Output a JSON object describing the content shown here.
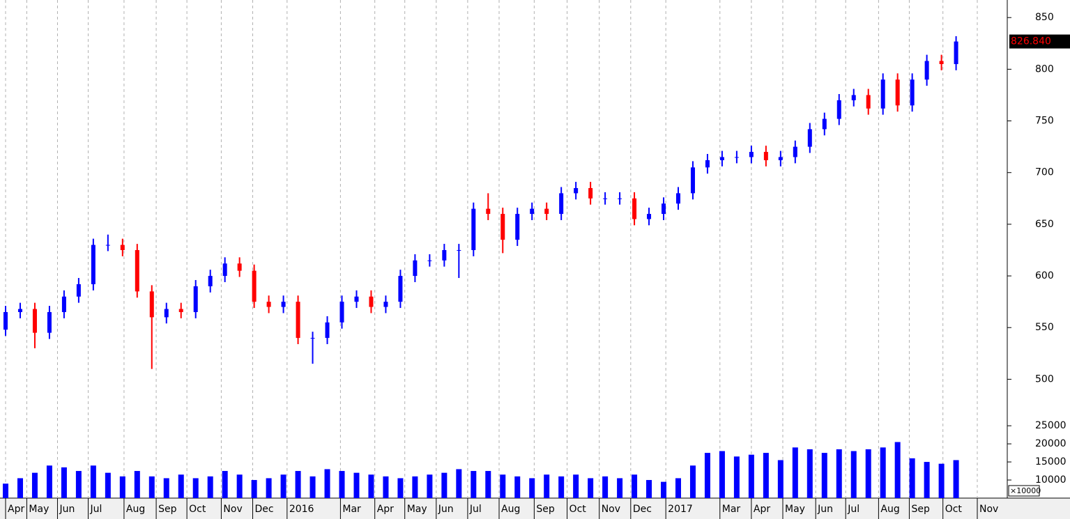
{
  "chart_data": [
    {
      "type": "candlestick",
      "x": [
        0,
        2,
        4,
        6,
        8,
        10,
        12,
        14,
        16,
        18,
        20,
        22,
        24,
        26,
        28,
        30,
        32,
        34,
        36,
        38,
        40,
        42,
        44,
        46,
        48,
        50,
        52,
        54,
        56,
        58,
        60,
        62,
        64,
        66,
        68,
        70,
        72,
        74,
        76,
        78,
        80,
        82,
        84,
        86,
        88,
        90,
        92,
        94,
        96,
        98,
        100,
        102,
        104,
        106,
        108,
        110,
        112,
        114,
        116,
        118,
        120,
        122,
        124,
        126,
        128,
        130
      ],
      "open": [
        548,
        565,
        568,
        545,
        565,
        580,
        592,
        630,
        630,
        625,
        585,
        560,
        568,
        565,
        590,
        600,
        612,
        605,
        575,
        570,
        575,
        540,
        540,
        555,
        575,
        580,
        570,
        575,
        600,
        615,
        615,
        625,
        625,
        665,
        660,
        635,
        660,
        665,
        660,
        680,
        685,
        675,
        675,
        675,
        655,
        660,
        670,
        680,
        705,
        712,
        715,
        715,
        720,
        712,
        715,
        725,
        742,
        752,
        770,
        775,
        762,
        790,
        765,
        790,
        808,
        805
      ],
      "high": [
        571,
        574,
        574,
        571,
        586,
        598,
        636,
        640,
        636,
        631,
        591,
        574,
        574,
        596,
        606,
        618,
        618,
        611,
        581,
        581,
        581,
        546,
        561,
        581,
        586,
        586,
        581,
        606,
        621,
        621,
        631,
        631,
        671,
        680,
        666,
        666,
        671,
        671,
        686,
        691,
        691,
        681,
        681,
        681,
        666,
        676,
        686,
        711,
        718,
        721,
        721,
        726,
        726,
        721,
        731,
        748,
        758,
        776,
        781,
        781,
        796,
        796,
        796,
        814,
        814,
        832
      ],
      "low": [
        542,
        559,
        530,
        539,
        559,
        574,
        586,
        624,
        619,
        579,
        510,
        554,
        559,
        559,
        584,
        594,
        599,
        569,
        564,
        564,
        534,
        515,
        534,
        549,
        569,
        564,
        564,
        569,
        594,
        609,
        609,
        598,
        619,
        654,
        622,
        629,
        654,
        654,
        654,
        674,
        669,
        669,
        669,
        649,
        649,
        654,
        664,
        674,
        699,
        706,
        709,
        709,
        706,
        706,
        709,
        719,
        736,
        746,
        764,
        756,
        756,
        759,
        759,
        784,
        799,
        799
      ],
      "close": [
        565,
        568,
        545,
        565,
        580,
        592,
        630,
        630,
        625,
        585,
        560,
        568,
        565,
        590,
        600,
        612,
        605,
        575,
        570,
        575,
        540,
        540,
        555,
        575,
        580,
        570,
        575,
        600,
        615,
        615,
        625,
        625,
        665,
        660,
        635,
        660,
        665,
        660,
        680,
        685,
        675,
        675,
        675,
        655,
        660,
        670,
        680,
        705,
        712,
        715,
        715,
        720,
        712,
        715,
        725,
        742,
        752,
        770,
        775,
        762,
        790,
        765,
        790,
        808,
        805,
        826.84
      ],
      "last_label": "826.840",
      "up_color": "#0000ff",
      "down_color": "#ff0000",
      "xlim": [
        0,
        137
      ],
      "xticks": [
        {
          "value": 0,
          "label": "Apr"
        },
        {
          "value": 2.9,
          "label": "May"
        },
        {
          "value": 7.1,
          "label": "Jun"
        },
        {
          "value": 11.3,
          "label": "Jul"
        },
        {
          "value": 16.2,
          "label": "Aug"
        },
        {
          "value": 20.6,
          "label": "Sep"
        },
        {
          "value": 24.8,
          "label": "Oct"
        },
        {
          "value": 29.5,
          "label": "Nov"
        },
        {
          "value": 33.8,
          "label": "Dec"
        },
        {
          "value": 38.5,
          "label": "2016"
        },
        {
          "value": 45.8,
          "label": "Mar"
        },
        {
          "value": 50.5,
          "label": "Apr"
        },
        {
          "value": 54.6,
          "label": "May"
        },
        {
          "value": 58.9,
          "label": "Jun"
        },
        {
          "value": 63.2,
          "label": "Jul"
        },
        {
          "value": 67.5,
          "label": "Aug"
        },
        {
          "value": 72.3,
          "label": "Sep"
        },
        {
          "value": 76.8,
          "label": "Oct"
        },
        {
          "value": 81.2,
          "label": "Nov"
        },
        {
          "value": 85.5,
          "label": "Dec"
        },
        {
          "value": 90.3,
          "label": "2017"
        },
        {
          "value": 97.7,
          "label": "Mar"
        },
        {
          "value": 102,
          "label": "Apr"
        },
        {
          "value": 106.3,
          "label": "May"
        },
        {
          "value": 110.8,
          "label": "Jun"
        },
        {
          "value": 114.9,
          "label": "Jul"
        },
        {
          "value": 119.4,
          "label": "Aug"
        },
        {
          "value": 123.6,
          "label": "Sep"
        },
        {
          "value": 128.2,
          "label": "Oct"
        },
        {
          "value": 132.9,
          "label": "Nov"
        }
      ],
      "ylim": [
        476,
        867
      ],
      "yticks": [
        500,
        550,
        600,
        650,
        700,
        750,
        800,
        850
      ],
      "grid": true
    },
    {
      "type": "bar",
      "x": [
        0,
        2,
        4,
        6,
        8,
        10,
        12,
        14,
        16,
        18,
        20,
        22,
        24,
        26,
        28,
        30,
        32,
        34,
        36,
        38,
        40,
        42,
        44,
        46,
        48,
        50,
        52,
        54,
        56,
        58,
        60,
        62,
        64,
        66,
        68,
        70,
        72,
        74,
        76,
        78,
        80,
        82,
        84,
        86,
        88,
        90,
        92,
        94,
        96,
        98,
        100,
        102,
        104,
        106,
        108,
        110,
        112,
        114,
        116,
        118,
        120,
        122,
        124,
        126,
        128,
        130
      ],
      "values": [
        9000,
        10500,
        12000,
        14000,
        13500,
        12500,
        14000,
        12000,
        11000,
        12500,
        11000,
        10500,
        11500,
        10500,
        11000,
        12500,
        11500,
        10000,
        10500,
        11500,
        12500,
        11000,
        13000,
        12500,
        12000,
        11500,
        11000,
        10500,
        11000,
        11500,
        12000,
        13000,
        12500,
        12500,
        11500,
        11000,
        10500,
        11500,
        11000,
        11500,
        10500,
        11000,
        10500,
        11500,
        10000,
        9500,
        10500,
        14000,
        17500,
        18000,
        16500,
        17000,
        17500,
        15500,
        19000,
        18500,
        17500,
        18500,
        18000,
        18500,
        19000,
        20500,
        16000,
        15000,
        14500,
        15500
      ],
      "color": "#0000ff",
      "ylim": [
        5000,
        31000
      ],
      "yticks": [
        10000,
        15000,
        20000,
        25000
      ],
      "multiplier_label": "×10000"
    }
  ]
}
